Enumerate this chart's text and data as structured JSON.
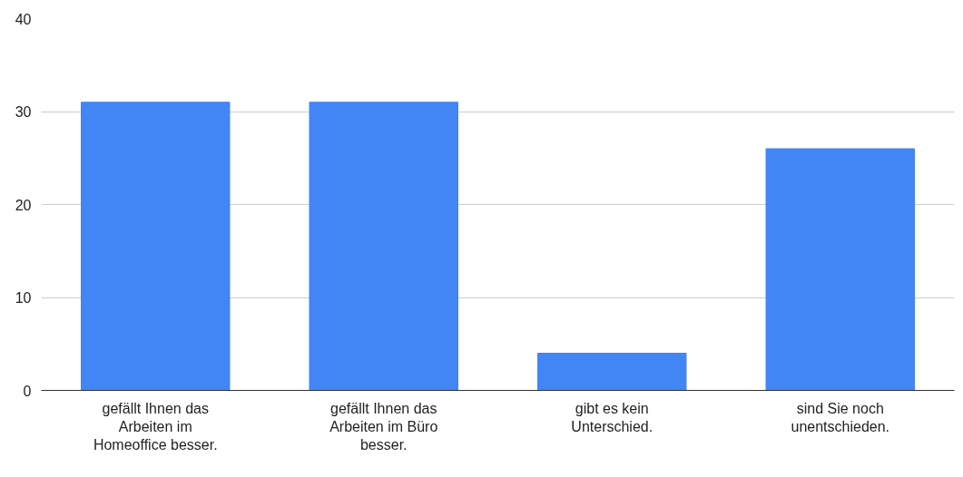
{
  "chart_data": {
    "type": "bar",
    "categories": [
      "gefällt Ihnen das Arbeiten im Homeoffice besser.",
      "gefällt Ihnen das Arbeiten im Büro besser.",
      "gibt es kein Unterschied.",
      "sind Sie noch unentschieden."
    ],
    "values": [
      31,
      31,
      4,
      26
    ],
    "color": "#4285f4",
    "ylim": [
      0,
      40
    ],
    "yticks": [
      0,
      10,
      20,
      30,
      40
    ],
    "grid": "y"
  }
}
